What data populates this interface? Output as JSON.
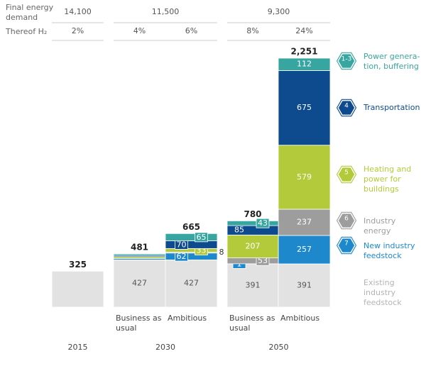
{
  "chart_data": {
    "type": "stacked_bar",
    "table": {
      "final_energy_demand": {
        "label": "Final energy\ndemand",
        "values": [
          {
            "value": 14100,
            "label": "14,100"
          },
          {
            "value": 11500,
            "label": "11,500"
          },
          {
            "value": 9300,
            "label": "9,300"
          }
        ]
      },
      "h2_share": {
        "label": "Thereof H₂",
        "values": [
          {
            "value": 2,
            "label": "2%"
          },
          {
            "value": 4,
            "label": "4%"
          },
          {
            "value": 6,
            "label": "6%"
          },
          {
            "value": 8,
            "label": "8%"
          },
          {
            "value": 24,
            "label": "24%"
          }
        ]
      }
    },
    "groups": [
      {
        "name": "2015",
        "categories": [
          null
        ]
      },
      {
        "name": "2030",
        "categories": [
          "Business as\nusual",
          "Ambitious"
        ]
      },
      {
        "name": "2050",
        "categories": [
          "Business as\nusual",
          "Ambitious"
        ]
      }
    ],
    "totals": [
      325,
      481,
      665,
      780,
      {
        "value": 2251,
        "label": "2,251"
      }
    ],
    "series": [
      {
        "name": "Existing\nindustry\nfeedstock",
        "icon": null,
        "color": "#e2e2e2",
        "text_color": "#b4b4b4",
        "values": [
          325,
          427,
          427,
          391,
          391
        ],
        "value_labels": [
          null,
          "427",
          "427",
          "391",
          "391"
        ]
      },
      {
        "name": "New industry\nfeedstock",
        "icon": "7",
        "color": "#1e88cc",
        "values": [
          0,
          13,
          62,
          1,
          257
        ],
        "value_labels": [
          null,
          null,
          "62",
          "1",
          "257"
        ]
      },
      {
        "name": "Industry energy",
        "icon": "6",
        "color": "#9d9d9d",
        "values": [
          0,
          0,
          8,
          53,
          237
        ],
        "value_labels": [
          null,
          null,
          "8",
          "53",
          "237"
        ]
      },
      {
        "name": "Heating and\npower for\nbuildings",
        "icon": "5",
        "color": "#b3cb3a",
        "values": [
          0,
          16,
          33,
          207,
          579
        ],
        "value_labels": [
          null,
          null,
          "33",
          "207",
          "579"
        ]
      },
      {
        "name": "Transportation",
        "icon": "4",
        "color": "#0e4a8e",
        "values": [
          0,
          12,
          70,
          85,
          675
        ],
        "value_labels": [
          null,
          null,
          "70",
          "85",
          "675"
        ]
      },
      {
        "name": "Power genera-\ntion, buffering",
        "icon": "1-3",
        "color": "#38a6a0",
        "values": [
          0,
          13,
          65,
          43,
          112
        ],
        "value_labels": [
          null,
          null,
          "65",
          "43",
          "112"
        ]
      }
    ]
  }
}
